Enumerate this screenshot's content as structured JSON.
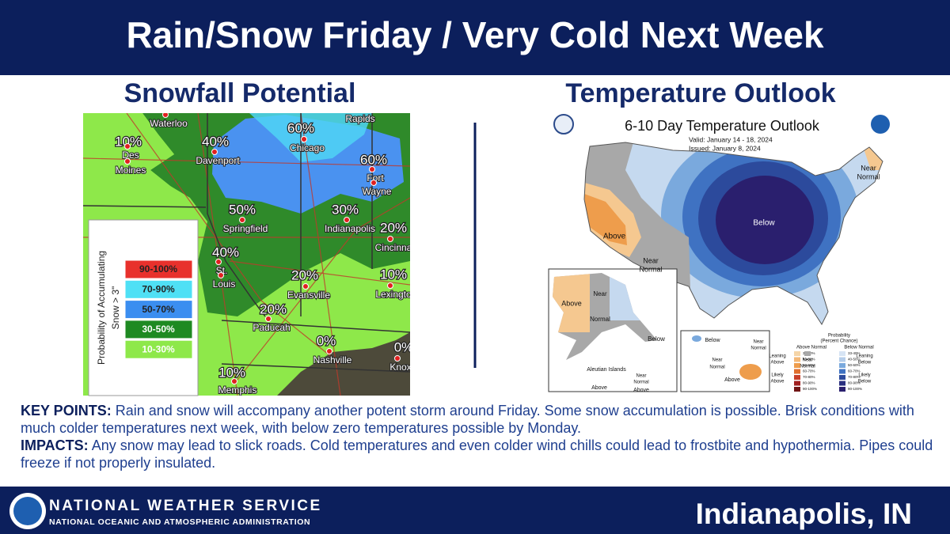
{
  "header": {
    "title": "Rain/Snow Friday / Very Cold Next Week"
  },
  "snowfall": {
    "heading": "Snowfall Potential",
    "labels": [
      "Waterloo",
      "10%",
      "Des",
      "Moines",
      "40%",
      "Davenport",
      "60%",
      "Chicago",
      "Rapids",
      "60%",
      "Fort",
      "Wayne",
      "50%",
      "Springfield",
      "30%",
      "Indianapolis",
      "20%",
      "Cincinna",
      "40%",
      "St.",
      "Louis",
      "20%",
      "Evansville",
      "10%",
      "Lexingto",
      "20%",
      "Paducah",
      "0%",
      "Nashville",
      "0%",
      "Knox",
      "10%",
      "Memphis"
    ],
    "legend": {
      "title_lines": [
        "Probability of Accumulating",
        "Snow > 3\""
      ],
      "items": [
        "90-100%",
        "70-90%",
        "50-70%",
        "30-50%",
        "10-30%"
      ]
    }
  },
  "temperature": {
    "heading": "Temperature Outlook",
    "labels": [
      "6-10 Day Temperature Outlook",
      "Valid:  January 14 - 18, 2024",
      "Issued:  January 8, 2024",
      "Near",
      "Normal",
      "Below",
      "Above",
      "Near",
      "Normal",
      "Above",
      "Near",
      "Normal",
      "Below",
      "Aleutian Islands",
      "Near",
      "Normal",
      "Above",
      "Above",
      "Below",
      "Near",
      "Normal",
      "Near",
      "Normal",
      "Above",
      "Leaning",
      "Above",
      "Likely",
      "Above",
      "Near",
      "Normal",
      "Leaning",
      "Below",
      "Likely",
      "Below",
      "Probability",
      "(Percent Chance)",
      "Above Normal",
      "Below Normal"
    ],
    "legend": {
      "above_ranges": [
        "33-40%",
        "40-50%",
        "50-60%",
        "60-70%",
        "70-80%",
        "80-90%",
        "90-100%"
      ],
      "below_ranges": [
        "33-40%",
        "40-50%",
        "50-60%",
        "60-70%",
        "70-80%",
        "80-90%",
        "90-100%"
      ]
    }
  },
  "key_points": {
    "label": "KEY POINTS:",
    "text": "Rain and snow will accompany another potent storm around Friday. Some snow accumulation is possible. Brisk conditions with much colder temperatures next week, with below zero temperatures possible by Monday."
  },
  "impacts": {
    "label": "IMPACTS:",
    "text": " Any snow may lead to slick roads. Cold temperatures and even colder wind chills could lead to frostbite and hypothermia. Pipes could freeze if not properly insulated."
  },
  "footer": {
    "agency": "NATIONAL WEATHER SERVICE",
    "parent": "NATIONAL OCEANIC AND ATMOSPHERIC ADMINISTRATION",
    "office": "Indianapolis, IN"
  }
}
